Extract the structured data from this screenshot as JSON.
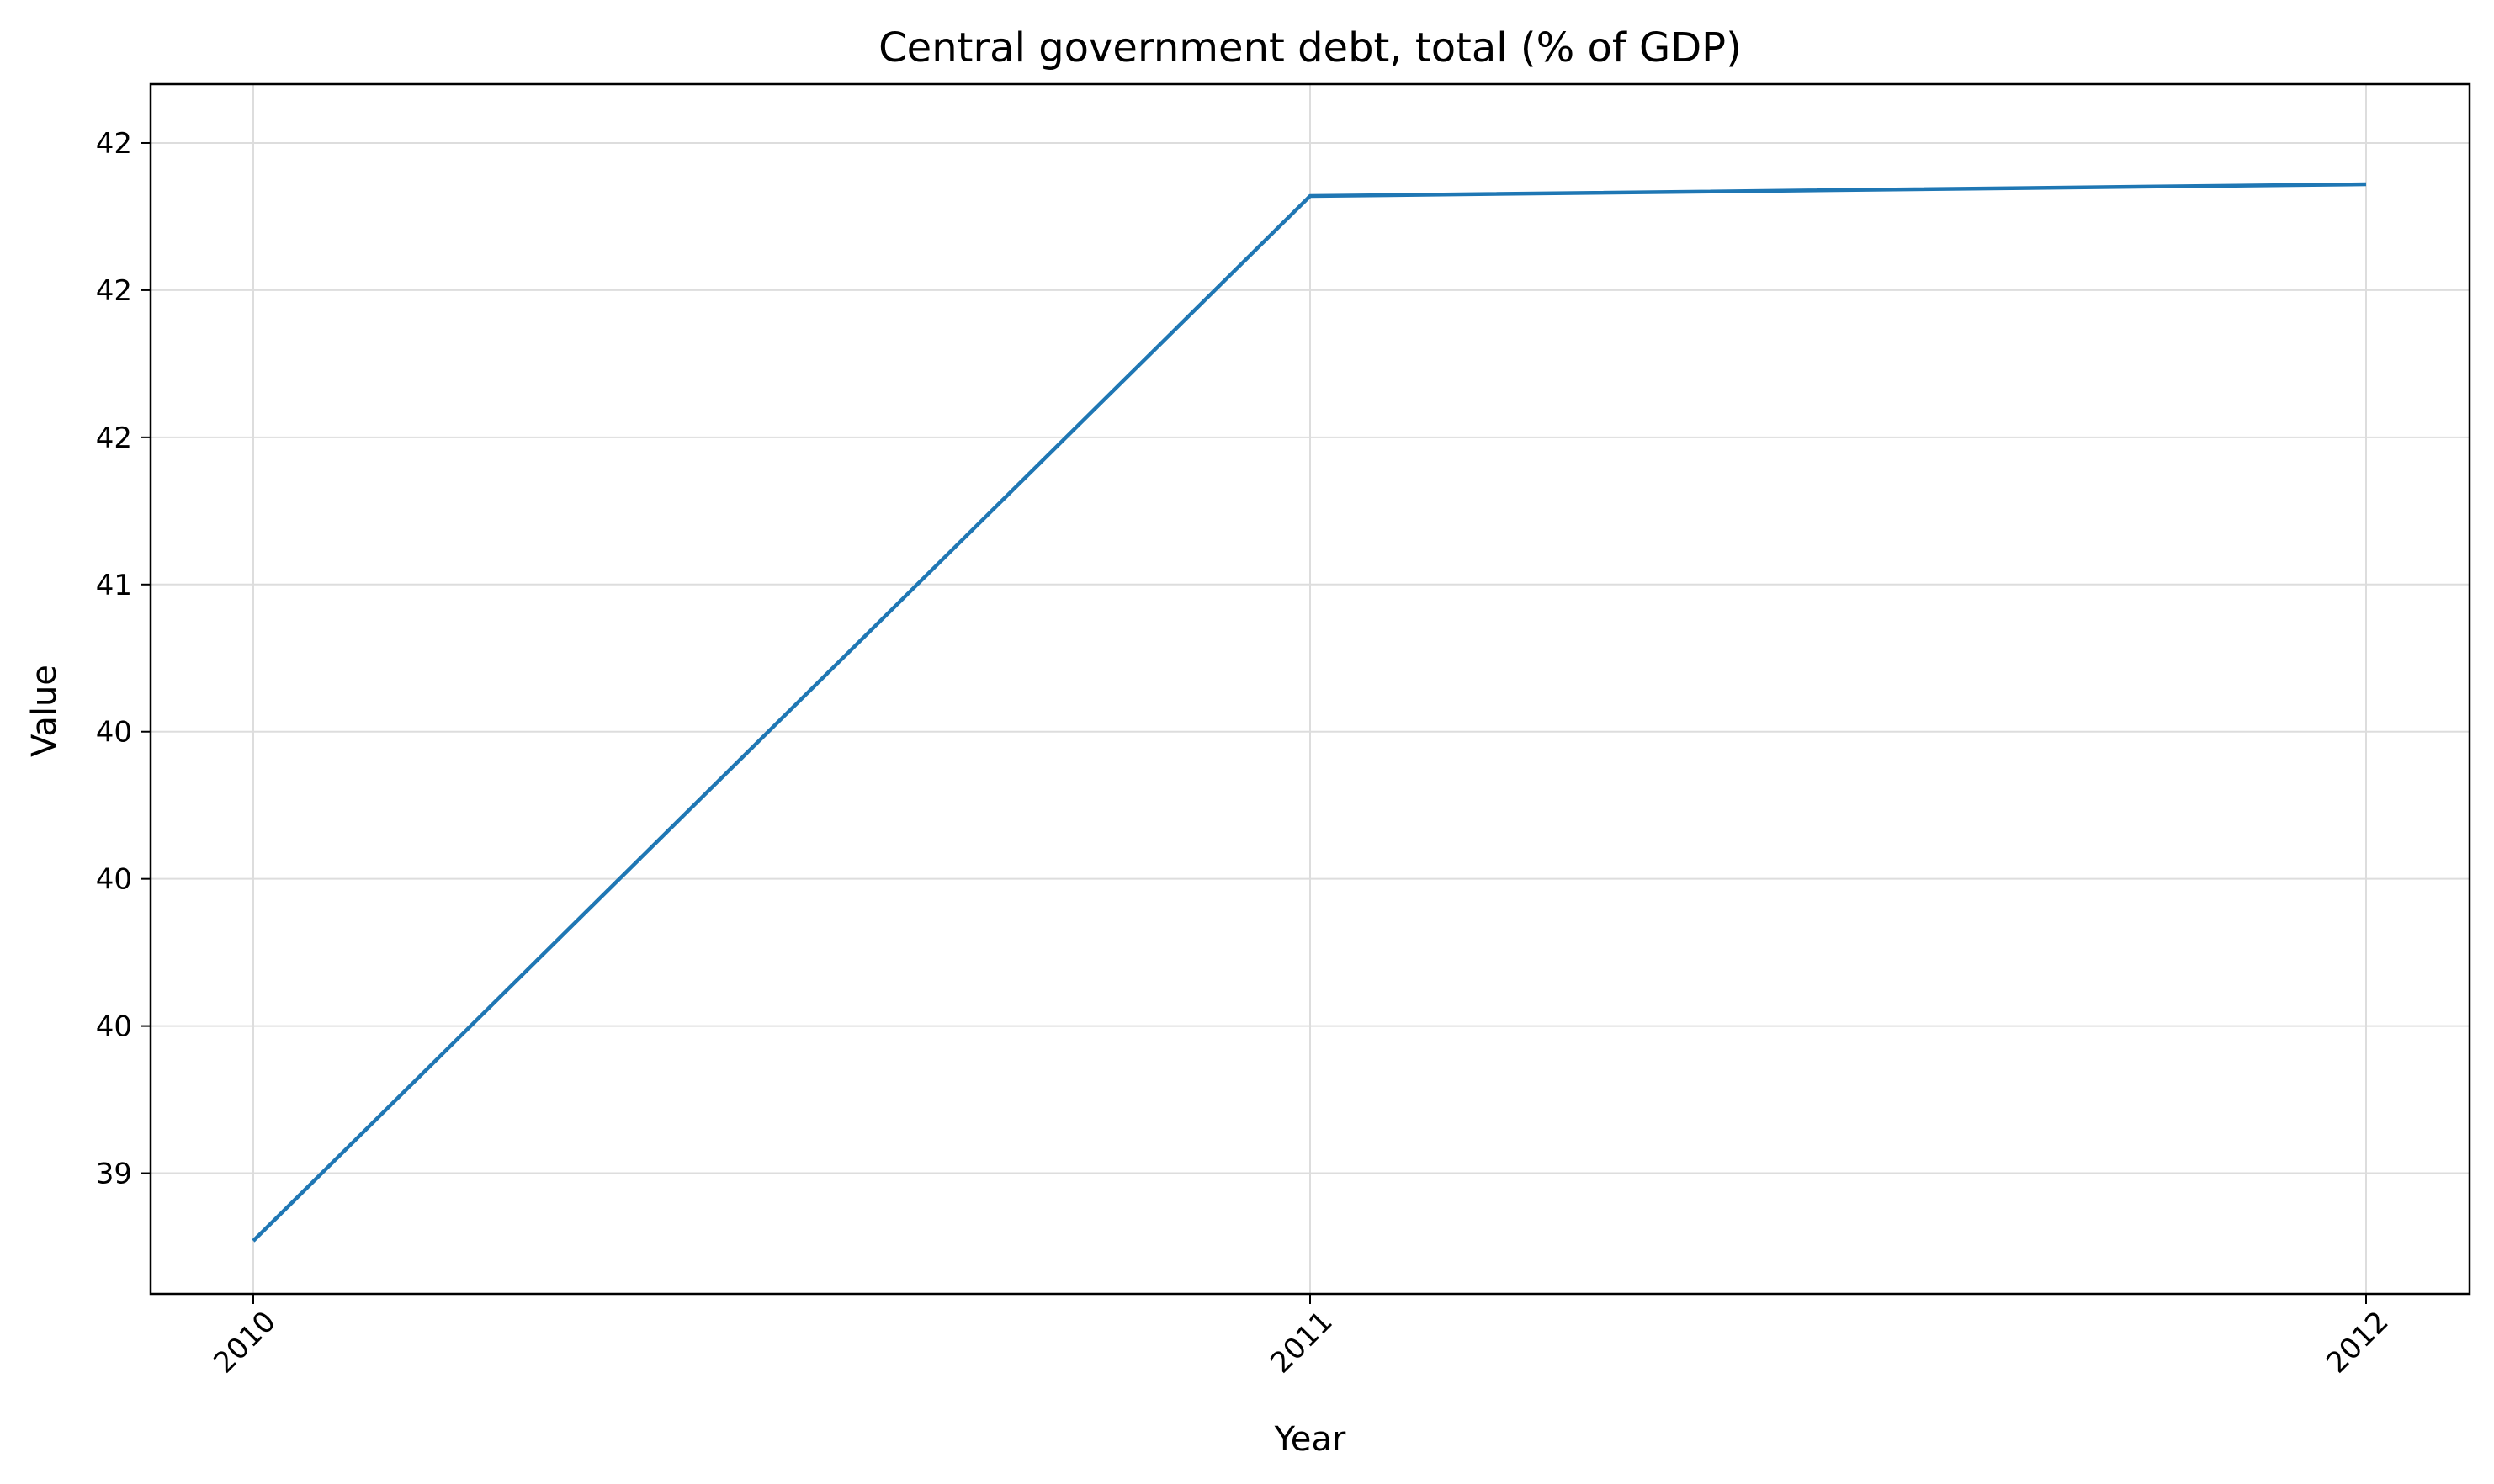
{
  "chart_data": {
    "type": "line",
    "title": "Central government debt, total (% of GDP)",
    "xlabel": "Year",
    "ylabel": "Value",
    "x": [
      "2010",
      "2011",
      "2012"
    ],
    "series": [
      {
        "values": [
          38.82,
          42.37,
          42.41
        ],
        "color": "#1f77b4"
      }
    ],
    "yticks": [
      {
        "value": 39.05,
        "label": "39"
      },
      {
        "value": 39.55,
        "label": "40"
      },
      {
        "value": 40.05,
        "label": "40"
      },
      {
        "value": 40.55,
        "label": "40"
      },
      {
        "value": 41.05,
        "label": "41"
      },
      {
        "value": 41.55,
        "label": "42"
      },
      {
        "value": 42.05,
        "label": "42"
      },
      {
        "value": 42.55,
        "label": "42"
      }
    ],
    "ylim": [
      38.64,
      42.75
    ],
    "grid": true,
    "legend": "none"
  }
}
